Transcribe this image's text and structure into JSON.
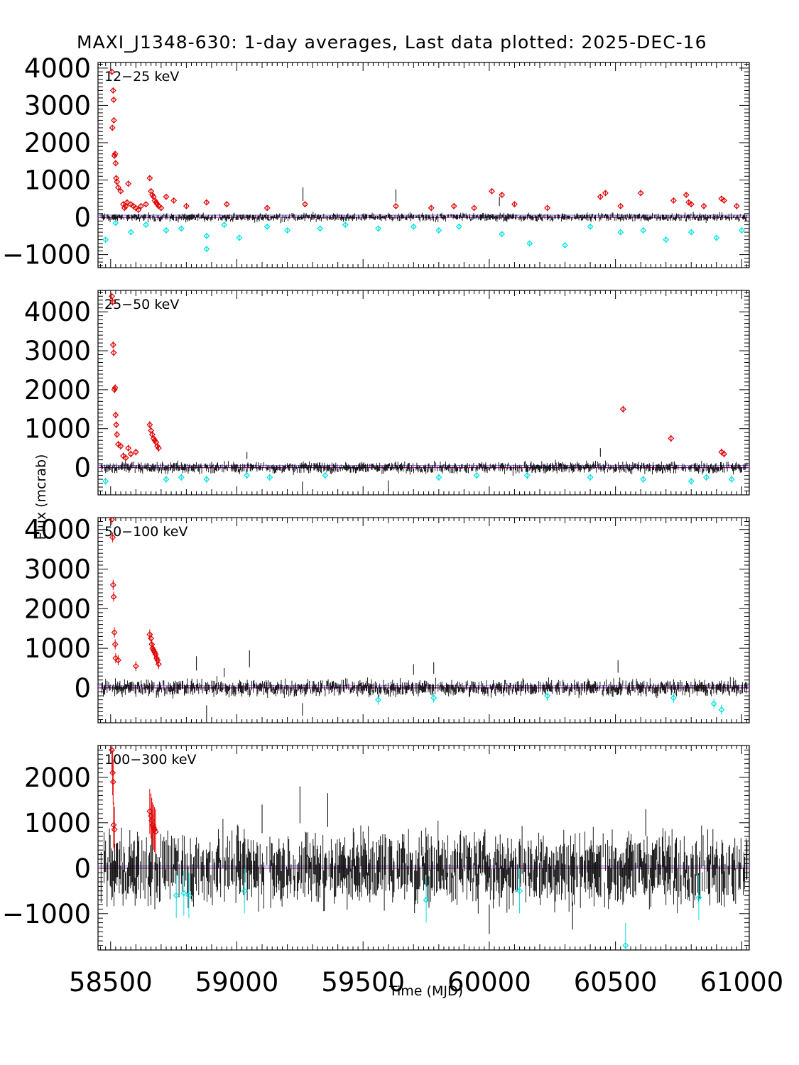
{
  "title": "MAXI_J1348-630:  1-day averages,  Last data plotted: 2025-DEC-16",
  "xlabel": "Time (MJD)",
  "ylabel": "Flux (mcrab)",
  "colors": {
    "normal": "#000000",
    "high": "#e00000",
    "low": "#00e0e0",
    "reference_line": "#b000b0"
  },
  "chart_data": [
    {
      "type": "scatter",
      "band": "12-25 keV",
      "xlim": [
        58450,
        61030
      ],
      "ylim": [
        -1350,
        4150
      ],
      "yticks": [
        -1000,
        0,
        1000,
        2000,
        3000,
        4000
      ],
      "xticks": [
        58500,
        59000,
        59500,
        60000,
        60500,
        61000
      ],
      "noise": 45,
      "high_points": [
        [
          58505,
          3900
        ],
        [
          58510,
          3400
        ],
        [
          58512,
          3150
        ],
        [
          58507,
          2400
        ],
        [
          58513,
          2600
        ],
        [
          58515,
          1650
        ],
        [
          58518,
          1700
        ],
        [
          58520,
          1450
        ],
        [
          58522,
          1050
        ],
        [
          58525,
          950
        ],
        [
          58530,
          800
        ],
        [
          58540,
          700
        ],
        [
          58550,
          350
        ],
        [
          58555,
          250
        ],
        [
          58560,
          300
        ],
        [
          58565,
          400
        ],
        [
          58570,
          900
        ],
        [
          58580,
          350
        ],
        [
          58590,
          300
        ],
        [
          58600,
          250
        ],
        [
          58610,
          200
        ],
        [
          58620,
          300
        ],
        [
          58640,
          350
        ],
        [
          58655,
          1050
        ],
        [
          58660,
          700
        ],
        [
          58665,
          600
        ],
        [
          58670,
          550
        ],
        [
          58675,
          450
        ],
        [
          58680,
          400
        ],
        [
          58685,
          350
        ],
        [
          58690,
          300
        ],
        [
          58700,
          250
        ],
        [
          58720,
          550
        ],
        [
          58750,
          450
        ],
        [
          58800,
          300
        ],
        [
          58880,
          400
        ],
        [
          58960,
          350
        ],
        [
          59120,
          250
        ],
        [
          59270,
          350
        ],
        [
          59630,
          300
        ],
        [
          59770,
          250
        ],
        [
          59860,
          300
        ],
        [
          59940,
          250
        ],
        [
          60010,
          700
        ],
        [
          60050,
          600
        ],
        [
          60100,
          350
        ],
        [
          60230,
          250
        ],
        [
          60440,
          550
        ],
        [
          60460,
          650
        ],
        [
          60520,
          300
        ],
        [
          60600,
          650
        ],
        [
          60730,
          450
        ],
        [
          60780,
          600
        ],
        [
          60790,
          400
        ],
        [
          60800,
          350
        ],
        [
          60850,
          300
        ],
        [
          60920,
          500
        ],
        [
          60930,
          450
        ],
        [
          60980,
          300
        ]
      ],
      "low_points": [
        [
          58480,
          -600
        ],
        [
          58520,
          -150
        ],
        [
          58580,
          -400
        ],
        [
          58640,
          -200
        ],
        [
          58720,
          -350
        ],
        [
          58780,
          -300
        ],
        [
          58880,
          -500
        ],
        [
          58880,
          -850
        ],
        [
          58950,
          -200
        ],
        [
          59010,
          -550
        ],
        [
          59120,
          -250
        ],
        [
          59200,
          -350
        ],
        [
          59330,
          -300
        ],
        [
          59430,
          -200
        ],
        [
          59560,
          -300
        ],
        [
          59700,
          -250
        ],
        [
          59800,
          -350
        ],
        [
          59880,
          -250
        ],
        [
          60050,
          -450
        ],
        [
          60160,
          -700
        ],
        [
          60300,
          -750
        ],
        [
          60400,
          -250
        ],
        [
          60520,
          -400
        ],
        [
          60610,
          -350
        ],
        [
          60700,
          -600
        ],
        [
          60800,
          -400
        ],
        [
          60900,
          -550
        ],
        [
          61000,
          -350
        ]
      ],
      "spikes": [
        [
          59262,
          800
        ],
        [
          59630,
          750
        ],
        [
          60040,
          550
        ]
      ]
    },
    {
      "type": "scatter",
      "band": "25-50 keV",
      "xlim": [
        58450,
        61030
      ],
      "ylim": [
        -700,
        4550
      ],
      "yticks": [
        0,
        1000,
        2000,
        3000,
        4000
      ],
      "xticks": [
        58500,
        59000,
        59500,
        60000,
        60500,
        61000
      ],
      "noise": 60,
      "high_points": [
        [
          58505,
          4400
        ],
        [
          58508,
          4250
        ],
        [
          58510,
          3150
        ],
        [
          58512,
          2950
        ],
        [
          58515,
          2000
        ],
        [
          58518,
          2050
        ],
        [
          58520,
          1350
        ],
        [
          58522,
          1100
        ],
        [
          58525,
          850
        ],
        [
          58530,
          600
        ],
        [
          58540,
          550
        ],
        [
          58550,
          300
        ],
        [
          58560,
          250
        ],
        [
          58570,
          500
        ],
        [
          58580,
          350
        ],
        [
          58600,
          400
        ],
        [
          58655,
          1100
        ],
        [
          58660,
          950
        ],
        [
          58665,
          850
        ],
        [
          58670,
          750
        ],
        [
          58675,
          700
        ],
        [
          58680,
          650
        ],
        [
          58685,
          550
        ],
        [
          58690,
          500
        ],
        [
          60530,
          1500
        ],
        [
          60720,
          750
        ],
        [
          60920,
          400
        ],
        [
          60930,
          350
        ]
      ],
      "low_points": [
        [
          58480,
          -350
        ],
        [
          58720,
          -300
        ],
        [
          58780,
          -250
        ],
        [
          58880,
          -300
        ],
        [
          59040,
          -200
        ],
        [
          59130,
          -250
        ],
        [
          59350,
          -200
        ],
        [
          59800,
          -250
        ],
        [
          59950,
          -200
        ],
        [
          60150,
          -200
        ],
        [
          60400,
          -250
        ],
        [
          60610,
          -300
        ],
        [
          60800,
          -350
        ],
        [
          60860,
          -250
        ],
        [
          60960,
          -300
        ]
      ],
      "spikes": [
        [
          59260,
          -650
        ],
        [
          59600,
          -600
        ],
        [
          60440,
          500
        ],
        [
          59040,
          400
        ]
      ]
    },
    {
      "type": "scatter",
      "band": "50-100 keV",
      "xlim": [
        58450,
        61030
      ],
      "ylim": [
        -880,
        4300
      ],
      "yticks": [
        0,
        1000,
        2000,
        3000,
        4000
      ],
      "xticks": [
        58500,
        59000,
        59500,
        60000,
        60500,
        61000
      ],
      "noise": 85,
      "high_points": [
        [
          58505,
          4250
        ],
        [
          58508,
          3800
        ],
        [
          58510,
          2600
        ],
        [
          58512,
          2300
        ],
        [
          58515,
          1400
        ],
        [
          58518,
          1100
        ],
        [
          58520,
          750
        ],
        [
          58530,
          700
        ],
        [
          58600,
          550
        ],
        [
          58655,
          1350
        ],
        [
          58660,
          1250
        ],
        [
          58663,
          1100
        ],
        [
          58666,
          1000
        ],
        [
          58670,
          950
        ],
        [
          58674,
          900
        ],
        [
          58678,
          850
        ],
        [
          58682,
          750
        ],
        [
          58686,
          700
        ],
        [
          58690,
          600
        ]
      ],
      "low_points": [
        [
          59560,
          -300
        ],
        [
          59780,
          -250
        ],
        [
          60230,
          -200
        ],
        [
          60730,
          -250
        ],
        [
          60890,
          -400
        ],
        [
          60920,
          -550
        ]
      ],
      "spikes": [
        [
          58840,
          800
        ],
        [
          58950,
          500
        ],
        [
          59050,
          950
        ],
        [
          59260,
          -700
        ],
        [
          58880,
          -800
        ],
        [
          60510,
          700
        ],
        [
          59780,
          650
        ],
        [
          59700,
          600
        ]
      ]
    },
    {
      "type": "scatter",
      "band": "100-300 keV",
      "xlim": [
        58450,
        61030
      ],
      "ylim": [
        -1800,
        2700
      ],
      "yticks": [
        -1000,
        0,
        1000,
        2000
      ],
      "xticks": [
        58500,
        59000,
        59500,
        60000,
        60500,
        61000
      ],
      "noise": 330,
      "high_points": [
        [
          58505,
          2600
        ],
        [
          58508,
          2100
        ],
        [
          58510,
          1900
        ],
        [
          58512,
          950
        ],
        [
          58515,
          850
        ],
        [
          58655,
          1250
        ],
        [
          58660,
          1150
        ],
        [
          58663,
          1050
        ],
        [
          58666,
          950
        ],
        [
          58670,
          900
        ],
        [
          58674,
          850
        ],
        [
          58678,
          800
        ]
      ],
      "low_points": [
        [
          58760,
          -600
        ],
        [
          58790,
          -550
        ],
        [
          58810,
          -600
        ],
        [
          59030,
          -500
        ],
        [
          59750,
          -700
        ],
        [
          60120,
          -500
        ],
        [
          60540,
          -1700
        ],
        [
          60830,
          -650
        ]
      ],
      "spikes": [
        [
          59250,
          1800
        ],
        [
          59360,
          1650
        ],
        [
          60000,
          -1450
        ],
        [
          60330,
          -1350
        ],
        [
          59100,
          1400
        ],
        [
          60620,
          1300
        ]
      ]
    }
  ]
}
